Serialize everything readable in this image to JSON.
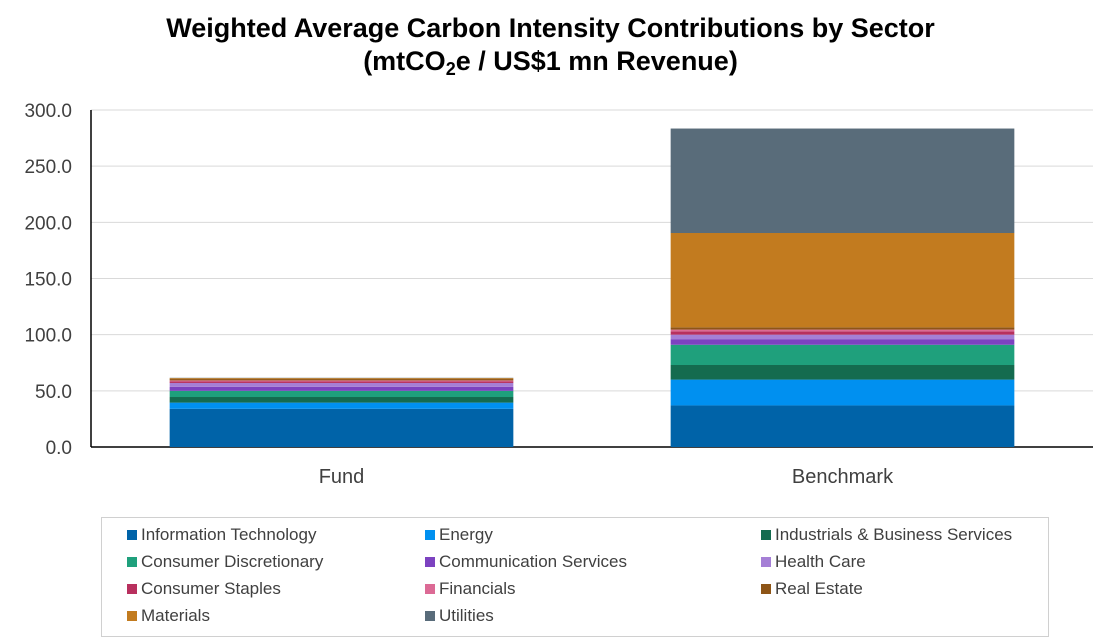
{
  "title_line1": "Weighted Average Carbon Intensity Contributions by Sector",
  "title_line2": {
    "pre": "(mtCO",
    "sub": "2",
    "post": "e / US$1 mn Revenue)"
  },
  "chart_data": {
    "type": "bar",
    "stacked": true,
    "categories": [
      "Fund",
      "Benchmark"
    ],
    "ylim": [
      0,
      300
    ],
    "yticks": [
      "0.0",
      "50.0",
      "100.0",
      "150.0",
      "200.0",
      "250.0",
      "300.0"
    ],
    "grid": true,
    "legend_position": "bottom",
    "series": [
      {
        "name": "Information Technology",
        "color": "#0063A8",
        "values": [
          34.0,
          37.0
        ]
      },
      {
        "name": "Energy",
        "color": "#0090F0",
        "values": [
          5.5,
          23.0
        ]
      },
      {
        "name": "Industrials & Business Services",
        "color": "#146B4F",
        "values": [
          5.0,
          13.0
        ]
      },
      {
        "name": "Consumer Discretionary",
        "color": "#1FA07C",
        "values": [
          5.5,
          18.0
        ]
      },
      {
        "name": "Communication Services",
        "color": "#7C42C0",
        "values": [
          3.5,
          5.0
        ]
      },
      {
        "name": "Health Care",
        "color": "#A57FD6",
        "values": [
          3.5,
          4.0
        ]
      },
      {
        "name": "Consumer Staples",
        "color": "#B8305E",
        "values": [
          1.5,
          3.0
        ]
      },
      {
        "name": "Financials",
        "color": "#DC6A95",
        "values": [
          0.8,
          1.5
        ]
      },
      {
        "name": "Real Estate",
        "color": "#8E5517",
        "values": [
          1.2,
          2.0
        ]
      },
      {
        "name": "Materials",
        "color": "#C27B1F",
        "values": [
          0.8,
          84.0
        ]
      },
      {
        "name": "Utilities",
        "color": "#596C7A",
        "values": [
          0.3,
          93.0
        ]
      }
    ]
  }
}
